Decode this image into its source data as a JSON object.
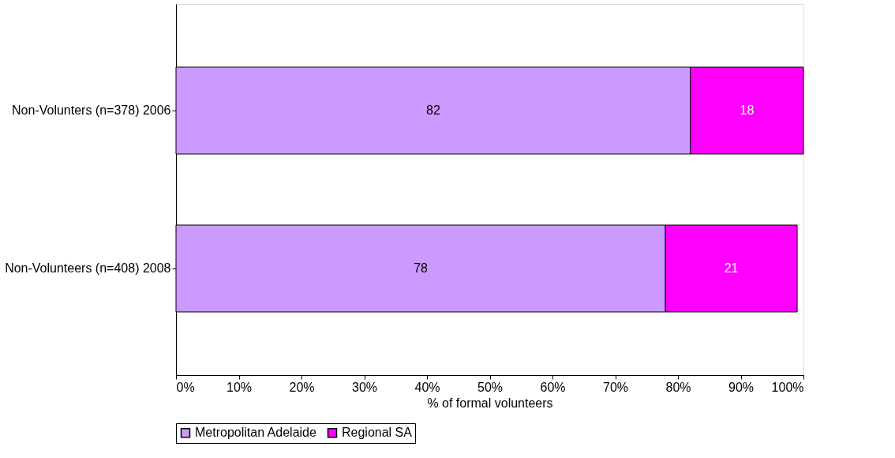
{
  "chart_data": {
    "type": "bar",
    "orientation": "horizontal",
    "stacked": true,
    "categories": [
      "Non-Volunters (n=378) 2006",
      "Non-Volunteers (n=408) 2008"
    ],
    "series": [
      {
        "name": "Metropolitan Adelaide",
        "color": "#cc99ff",
        "values": [
          82,
          78
        ],
        "value_labels": [
          "82",
          "78"
        ]
      },
      {
        "name": "Regional SA",
        "color": "#ff00ff",
        "values": [
          18,
          21
        ],
        "value_labels": [
          "18",
          "21"
        ]
      }
    ],
    "xlabel": "% of formal volunteers",
    "xlim": [
      0,
      100
    ],
    "xticks": [
      {
        "value": 0,
        "label": "0%"
      },
      {
        "value": 10,
        "label": "10%"
      },
      {
        "value": 20,
        "label": "20%"
      },
      {
        "value": 30,
        "label": "30%"
      },
      {
        "value": 40,
        "label": "40%"
      },
      {
        "value": 50,
        "label": "50%"
      },
      {
        "value": 60,
        "label": "60%"
      },
      {
        "value": 70,
        "label": "70%"
      },
      {
        "value": 80,
        "label": "80%"
      },
      {
        "value": 90,
        "label": "90%"
      },
      {
        "value": 100,
        "label": "100%"
      }
    ],
    "grid": false,
    "legend": "bottom left"
  }
}
